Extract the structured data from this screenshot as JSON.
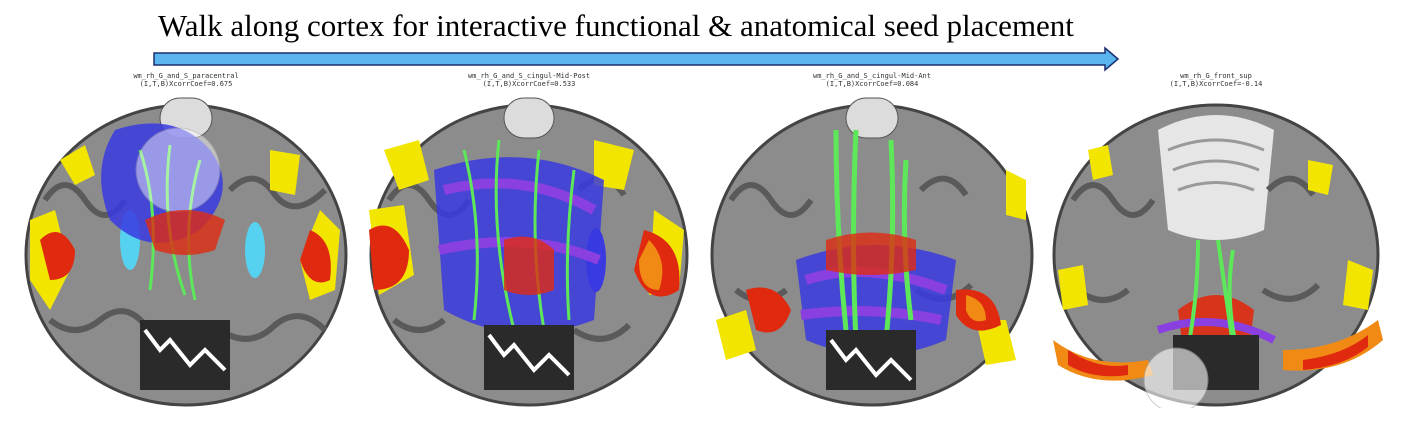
{
  "headline": "Walk along cortex for interactive functional & anatomical seed placement",
  "colors": {
    "arrow_fill": "#5ab4ee",
    "arrow_stroke": "#1a2e6e",
    "cortex_gray": "#8c8c8c",
    "activation_yellow": "#f2e600",
    "activation_red": "#e02a10",
    "activation_orange": "#f08a14",
    "deactivation_cyan": "#56d2f0",
    "fiber_blue": "#3a3ae0",
    "fiber_purple": "#8a40e0",
    "fiber_green": "#5de85a"
  },
  "panels": [
    {
      "label_line1": "wm_rh_G_and_S_paracentral",
      "label_line2": "(I,T,B)XcorrCoef=0.675"
    },
    {
      "label_line1": "wm_rh_G_and_S_cingul-Mid-Post",
      "label_line2": "(I,T,B)XcorrCoef=0.533"
    },
    {
      "label_line1": "wm_rh_G_and_S_cingul-Mid-Ant",
      "label_line2": "(I,T,B)XcorrCoef=0.084"
    },
    {
      "label_line1": "wm_rh_G_front_sup",
      "label_line2": "(I,T,B)XcorrCoef=-0.14"
    }
  ]
}
